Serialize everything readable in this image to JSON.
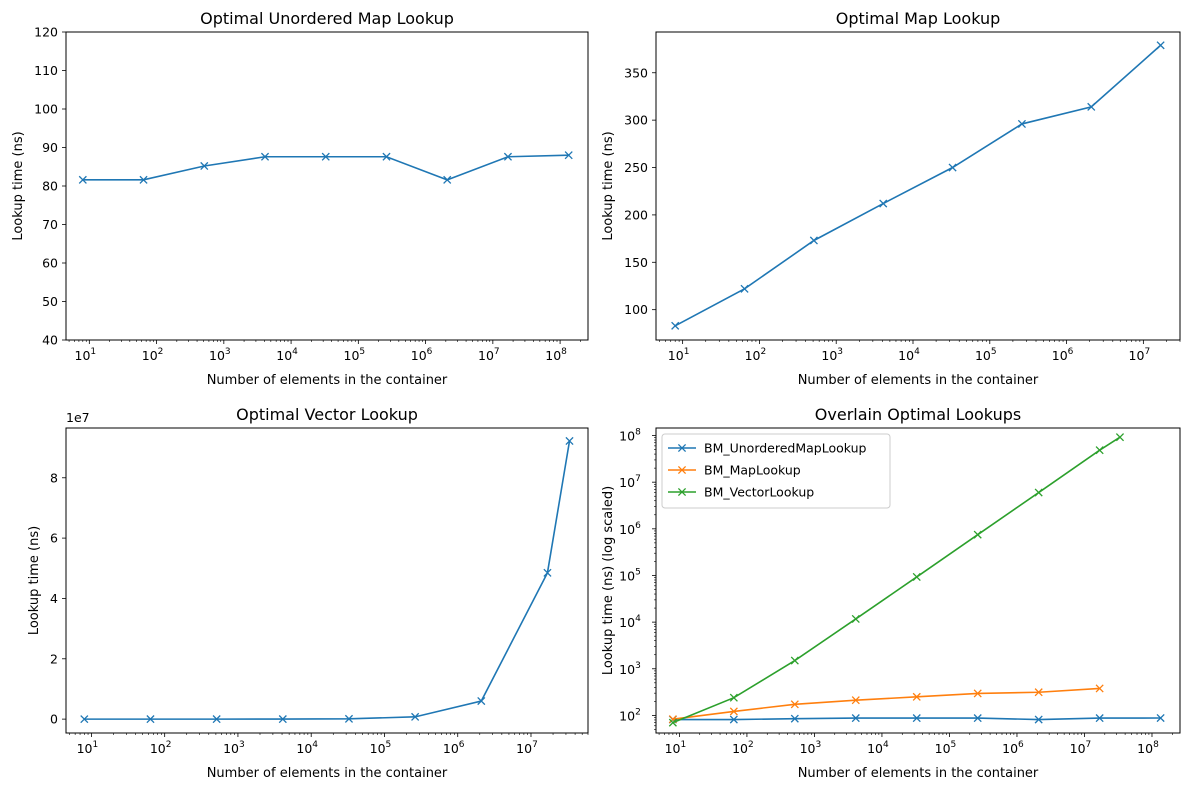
{
  "chart_data": [
    {
      "type": "line",
      "title": "Optimal Unordered Map Lookup",
      "xlabel": "Number of elements in the container",
      "ylabel": "Lookup time (ns)",
      "xscale": "log",
      "yscale": "linear",
      "xlim": [
        4.5,
        260000000
      ],
      "ylim": [
        40,
        120
      ],
      "yticks": [
        40,
        50,
        60,
        70,
        80,
        90,
        100,
        110,
        120
      ],
      "xtick_exponents": [
        1,
        2,
        3,
        4,
        5,
        6,
        7,
        8
      ],
      "series": [
        {
          "color": "#1f77b4",
          "marker": "x",
          "x": [
            8,
            64,
            512,
            4096,
            32768,
            262144,
            2097152,
            16777216,
            134217728
          ],
          "y": [
            81.6,
            81.6,
            85.2,
            87.6,
            87.6,
            87.6,
            81.6,
            87.6,
            88.0
          ]
        }
      ]
    },
    {
      "type": "line",
      "title": "Optimal Map Lookup",
      "xlabel": "Number of elements in the container",
      "ylabel": "Lookup time (ns)",
      "xscale": "log",
      "yscale": "linear",
      "xlim": [
        4.5,
        30000000
      ],
      "ylim": [
        68,
        393
      ],
      "yticks": [
        100,
        150,
        200,
        250,
        300,
        350
      ],
      "xtick_exponents": [
        1,
        2,
        3,
        4,
        5,
        6,
        7
      ],
      "series": [
        {
          "color": "#1f77b4",
          "marker": "x",
          "x": [
            8,
            64,
            512,
            4096,
            32768,
            262144,
            2097152,
            16777216
          ],
          "y": [
            83,
            122,
            173,
            212,
            250,
            296,
            314,
            379
          ]
        }
      ]
    },
    {
      "type": "line",
      "title": "Optimal Vector Lookup",
      "xlabel": "Number of elements in the container",
      "ylabel": "Lookup time (ns)",
      "xscale": "log",
      "yscale": "linear",
      "y_offset_label": "1e7",
      "y_unit": 10000000,
      "xlim": [
        4.5,
        60000000
      ],
      "ylim": [
        -4600000,
        96500000
      ],
      "yticks": [
        0,
        20000000,
        40000000,
        60000000,
        80000000
      ],
      "ytick_labels": [
        "0",
        "2",
        "4",
        "6",
        "8"
      ],
      "xtick_exponents": [
        1,
        2,
        3,
        4,
        5,
        6,
        7
      ],
      "series": [
        {
          "color": "#1f77b4",
          "marker": "x",
          "x": [
            8,
            64,
            512,
            4096,
            32768,
            262144,
            2097152,
            16777216,
            33554432
          ],
          "y": [
            70,
            240,
            1500,
            11700,
            93000,
            750000,
            6000000,
            48500000,
            92200000
          ]
        }
      ]
    },
    {
      "type": "line",
      "title": "Overlain Optimal Lookups",
      "xlabel": "Number of elements in the container",
      "ylabel": "Lookup time (ns) (log scaled)",
      "xscale": "log",
      "yscale": "log",
      "xlim": [
        4.5,
        260000000
      ],
      "ylim": [
        42,
        145000000
      ],
      "xtick_exponents": [
        1,
        2,
        3,
        4,
        5,
        6,
        7,
        8
      ],
      "ytick_exponents": [
        2,
        3,
        4,
        5,
        6,
        7,
        8
      ],
      "legend": "upper-left",
      "series": [
        {
          "name": "BM_UnorderedMapLookup",
          "color": "#1f77b4",
          "marker": "x",
          "x": [
            8,
            64,
            512,
            4096,
            32768,
            262144,
            2097152,
            16777216,
            134217728
          ],
          "y": [
            81.6,
            81.6,
            85.2,
            87.6,
            87.6,
            87.6,
            81.6,
            87.6,
            88.0
          ]
        },
        {
          "name": "BM_MapLookup",
          "color": "#ff7f0e",
          "marker": "x",
          "x": [
            8,
            64,
            512,
            4096,
            32768,
            262144,
            2097152,
            16777216
          ],
          "y": [
            83,
            122,
            173,
            212,
            250,
            296,
            314,
            379
          ]
        },
        {
          "name": "BM_VectorLookup",
          "color": "#2ca02c",
          "marker": "x",
          "x": [
            8,
            64,
            512,
            4096,
            32768,
            262144,
            2097152,
            16777216,
            33554432
          ],
          "y": [
            70,
            240,
            1500,
            11700,
            93000,
            750000,
            6000000,
            48500000,
            92200000
          ]
        }
      ]
    }
  ]
}
